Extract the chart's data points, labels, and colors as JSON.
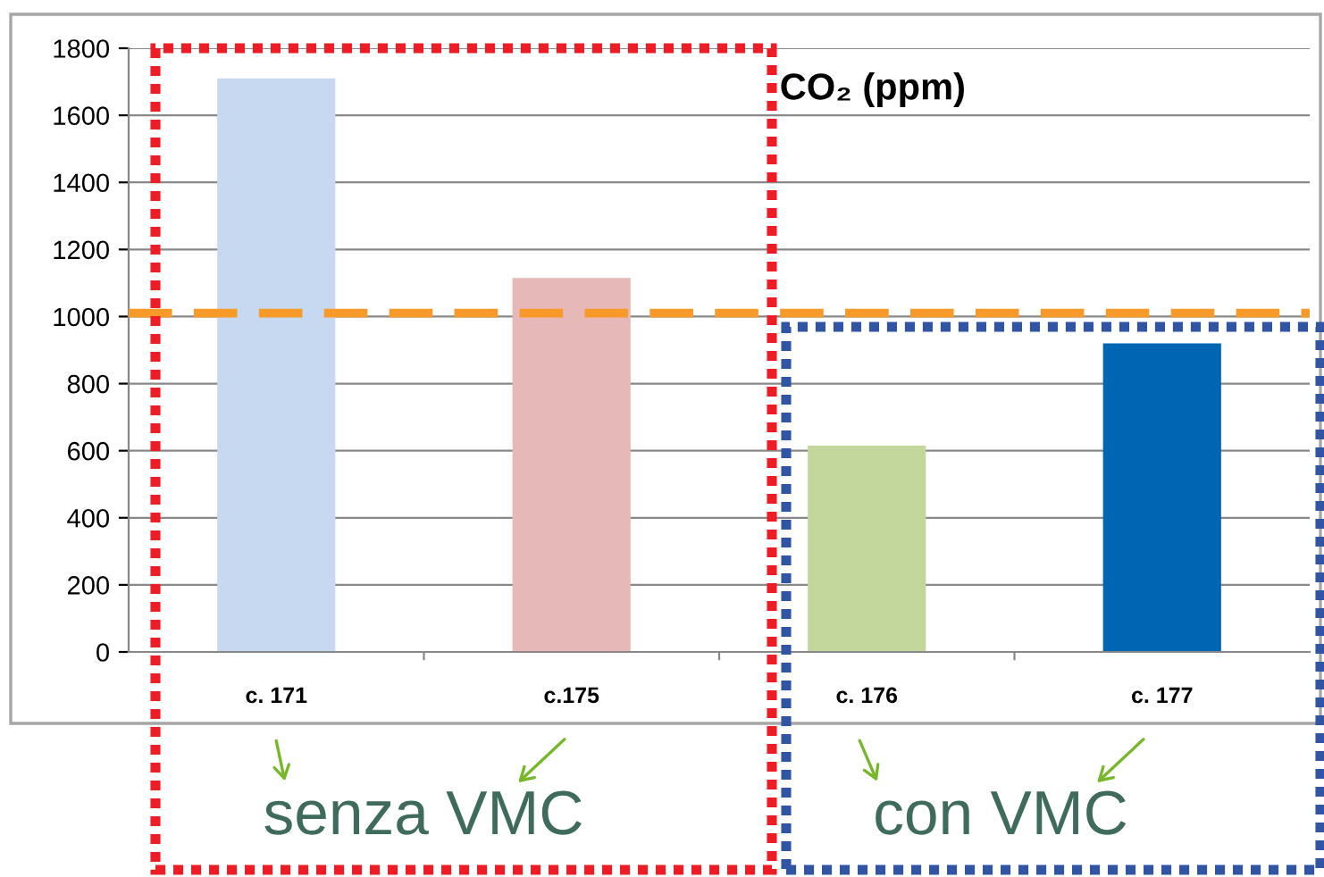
{
  "chart_data": {
    "type": "bar",
    "title": "CO₂ (ppm)",
    "categories": [
      "c. 171",
      "c.175",
      "c. 176",
      "c. 177"
    ],
    "values": [
      1710,
      1115,
      615,
      920
    ],
    "colors": [
      "#c6d9f0",
      "#e6b9b8",
      "#c3d69b",
      "#0066b3"
    ],
    "ylim": [
      0,
      1800
    ],
    "yticks": [
      0,
      200,
      400,
      600,
      800,
      1000,
      1200,
      1400,
      1600,
      1800
    ],
    "grid": "y",
    "legend": false,
    "ref_lines": [
      {
        "axis": "y",
        "value": 1010,
        "color": "#f79a2a",
        "line_style": "dashed"
      }
    ],
    "annotations": [
      "senza VMC",
      "con VMC"
    ]
  }
}
